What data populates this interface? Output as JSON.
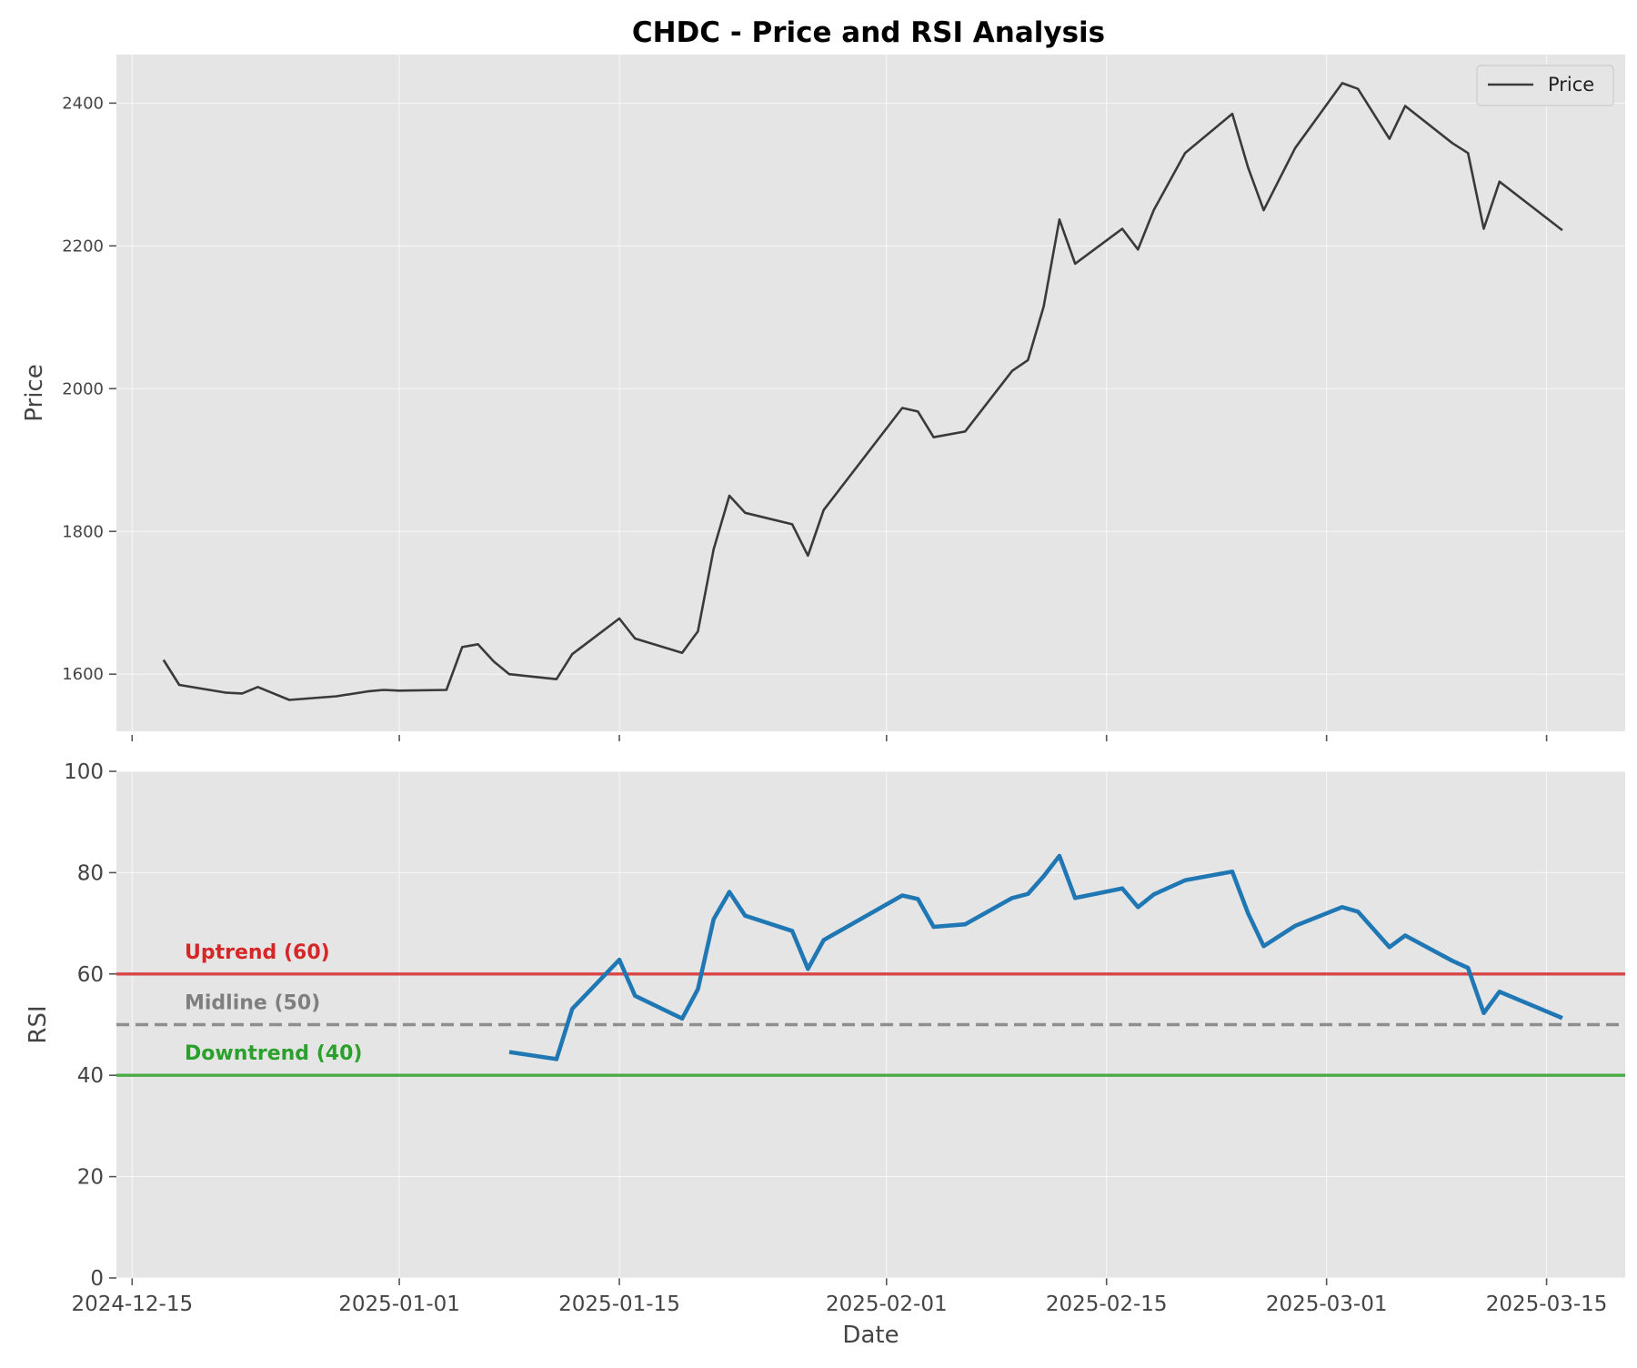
{
  "title": "CHDC - Price and RSI Analysis",
  "chart_data": [
    {
      "type": "line",
      "panel": "price",
      "ylabel": "Price",
      "xlim": [
        "2024-12-14",
        "2025-03-20"
      ],
      "ylim": [
        1520,
        2468
      ],
      "yticks": [
        1600,
        1800,
        2000,
        2200,
        2400
      ],
      "grid": true,
      "legend": {
        "placement": "top-right",
        "entries": [
          "Price"
        ]
      },
      "series": [
        {
          "name": "Price",
          "color": "#3a3a3a",
          "x": [
            "2024-12-17",
            "2024-12-18",
            "2024-12-21",
            "2024-12-22",
            "2024-12-23",
            "2024-12-25",
            "2024-12-28",
            "2024-12-30",
            "2024-12-31",
            "2025-01-01",
            "2025-01-04",
            "2025-01-05",
            "2025-01-06",
            "2025-01-07",
            "2025-01-08",
            "2025-01-11",
            "2025-01-12",
            "2025-01-15",
            "2025-01-16",
            "2025-01-19",
            "2025-01-20",
            "2025-01-21",
            "2025-01-22",
            "2025-01-23",
            "2025-01-26",
            "2025-01-27",
            "2025-01-28",
            "2025-02-02",
            "2025-02-03",
            "2025-02-04",
            "2025-02-06",
            "2025-02-09",
            "2025-02-10",
            "2025-02-11",
            "2025-02-12",
            "2025-02-13",
            "2025-02-16",
            "2025-02-17",
            "2025-02-18",
            "2025-02-20",
            "2025-02-23",
            "2025-02-24",
            "2025-02-25",
            "2025-02-27",
            "2025-03-02",
            "2025-03-03",
            "2025-03-05",
            "2025-03-06",
            "2025-03-09",
            "2025-03-10",
            "2025-03-11",
            "2025-03-12",
            "2025-03-16"
          ],
          "y": [
            1620,
            1585,
            1574,
            1573,
            1582,
            1564,
            1569,
            1576,
            1578,
            1577,
            1578,
            1638,
            1642,
            1618,
            1600,
            1593,
            1628,
            1678,
            1650,
            1630,
            1660,
            1775,
            1850,
            1826,
            1810,
            1766,
            1830,
            1973,
            1968,
            1932,
            1940,
            2025,
            2040,
            2115,
            2237,
            2175,
            2224,
            2195,
            2250,
            2330,
            2385,
            2310,
            2250,
            2337,
            2428,
            2420,
            2350,
            2396,
            2344,
            2330,
            2224,
            2290,
            2222
          ]
        }
      ]
    },
    {
      "type": "line",
      "panel": "rsi",
      "xlabel": "Date",
      "ylabel": "RSI",
      "xlim": [
        "2024-12-14",
        "2025-03-20"
      ],
      "ylim": [
        0,
        100
      ],
      "yticks": [
        0,
        20,
        40,
        60,
        80,
        100
      ],
      "xticks": [
        "2024-12-15",
        "2025-01-01",
        "2025-01-15",
        "2025-02-01",
        "2025-02-15",
        "2025-03-01",
        "2025-03-15"
      ],
      "grid": true,
      "reference_lines": [
        {
          "label": "Uptrend (60)",
          "value": 60,
          "color": "#d62728",
          "style": "solid"
        },
        {
          "label": "Midline (50)",
          "value": 50,
          "color": "#7f7f7f",
          "style": "dashed"
        },
        {
          "label": "Downtrend (40)",
          "value": 40,
          "color": "#2ca02c",
          "style": "solid"
        }
      ],
      "series": [
        {
          "name": "RSI",
          "color": "#1f77b4",
          "x": [
            "2025-01-08",
            "2025-01-11",
            "2025-01-12",
            "2025-01-15",
            "2025-01-16",
            "2025-01-19",
            "2025-01-20",
            "2025-01-21",
            "2025-01-22",
            "2025-01-23",
            "2025-01-26",
            "2025-01-27",
            "2025-01-28",
            "2025-02-02",
            "2025-02-03",
            "2025-02-04",
            "2025-02-06",
            "2025-02-09",
            "2025-02-10",
            "2025-02-11",
            "2025-02-12",
            "2025-02-13",
            "2025-02-16",
            "2025-02-17",
            "2025-02-18",
            "2025-02-20",
            "2025-02-23",
            "2025-02-24",
            "2025-02-25",
            "2025-02-27",
            "2025-03-02",
            "2025-03-03",
            "2025-03-05",
            "2025-03-06",
            "2025-03-09",
            "2025-03-10",
            "2025-03-11",
            "2025-03-12",
            "2025-03-16"
          ],
          "y": [
            44.6,
            43.2,
            53.1,
            62.8,
            55.7,
            51.2,
            57.0,
            70.8,
            76.2,
            71.5,
            68.5,
            61.0,
            66.7,
            75.5,
            74.8,
            69.3,
            69.8,
            75.0,
            75.8,
            79.3,
            83.3,
            75.0,
            76.9,
            73.2,
            75.7,
            78.5,
            80.2,
            72.0,
            65.5,
            69.5,
            73.2,
            72.3,
            65.3,
            67.6,
            62.6,
            61.2,
            52.3,
            56.5,
            51.3
          ]
        }
      ]
    }
  ]
}
